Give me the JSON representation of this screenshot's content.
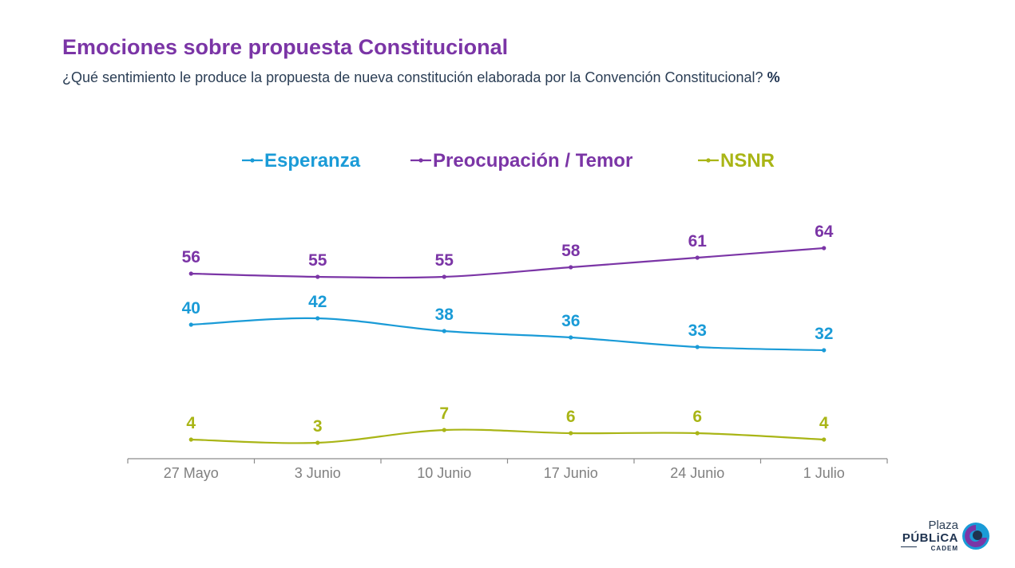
{
  "header": {
    "title": "Emociones sobre propuesta Constitucional",
    "subtitle": "¿Qué sentimiento le produce la propuesta de nueva constitución elaborada por la Convención Constitucional?",
    "unit": "%"
  },
  "logo": {
    "line1": "Plaza",
    "line2": "PÚBLiCA",
    "line3": "CADEM"
  },
  "colors": {
    "esperanza": "#1a9bd7",
    "preocupacion": "#7b35a6",
    "nsnr": "#a9b516",
    "axis": "#8c8c8c"
  },
  "chart_data": {
    "type": "line",
    "title": "Emociones sobre propuesta Constitucional",
    "categories": [
      "27 Mayo",
      "3 Junio",
      "10 Junio",
      "17 Junio",
      "24 Junio",
      "1 Julio"
    ],
    "series": [
      {
        "name": "Esperanza",
        "color": "#1a9bd7",
        "values": [
          40,
          42,
          38,
          36,
          33,
          32
        ]
      },
      {
        "name": "Preocupación / Temor",
        "color": "#7b35a6",
        "values": [
          56,
          55,
          55,
          58,
          61,
          64
        ]
      },
      {
        "name": "NSNR",
        "color": "#a9b516",
        "values": [
          4,
          3,
          7,
          6,
          6,
          4
        ]
      }
    ],
    "xlabel": "",
    "ylabel": "",
    "grid": false,
    "legend": "top"
  }
}
